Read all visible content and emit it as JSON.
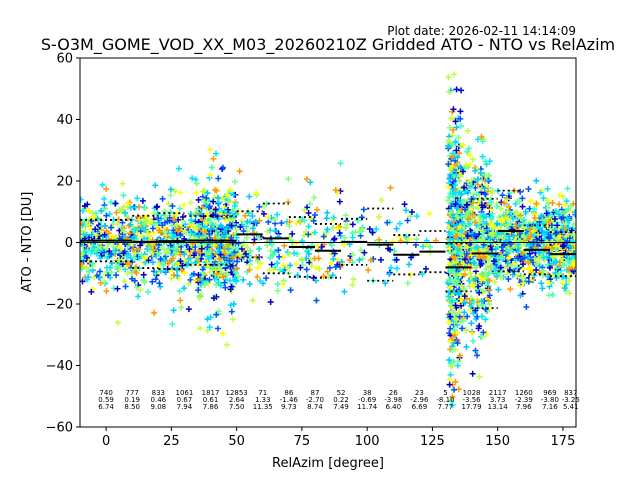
{
  "chart_data": {
    "type": "scatter",
    "title": "S-O3M_GOME_VOD_XX_M03_20260210Z Gridded ATO - NTO vs RelAzim",
    "plot_date": "Plot date: 2026-02-11 14:14:09",
    "xlabel": "RelAzim [degree]",
    "ylabel": "ATO - NTO [DU]",
    "xlim": [
      -10,
      180
    ],
    "ylim": [
      -60,
      60
    ],
    "xticks": [
      0,
      25,
      50,
      75,
      100,
      125,
      150,
      175
    ],
    "yticks": [
      -60,
      -40,
      -20,
      0,
      20,
      40,
      60
    ],
    "xtick_labels": [
      "0",
      "25",
      "50",
      "75",
      "100",
      "125",
      "150",
      "175"
    ],
    "ytick_labels": [
      "−60",
      "−40",
      "−20",
      "0",
      "20",
      "40",
      "60"
    ],
    "marker": "+",
    "grid": false,
    "zero_line": true,
    "point_colors": [
      "#00e5ff",
      "#00c8ff",
      "#40ffb8",
      "#80ff80",
      "#c0ff40",
      "#ffff00",
      "#ff9900",
      "#0050ff",
      "#0000cd"
    ],
    "bins": [
      {
        "x": 0,
        "count": "740",
        "mean": "0.59",
        "std": "6.74",
        "mean_val": 0.59,
        "std_val": 6.74,
        "lo": -10,
        "hi": 10
      },
      {
        "x": 10,
        "count": "777",
        "mean": "0.19",
        "std": "8.50",
        "mean_val": 0.19,
        "std_val": 8.5,
        "lo": 10,
        "hi": 20
      },
      {
        "x": 20,
        "count": "833",
        "mean": "0.46",
        "std": "9.08",
        "mean_val": 0.46,
        "std_val": 9.08,
        "lo": 20,
        "hi": 30
      },
      {
        "x": 30,
        "count": "1061",
        "mean": "0.67",
        "std": "7.94",
        "mean_val": 0.67,
        "std_val": 7.94,
        "lo": 30,
        "hi": 40
      },
      {
        "x": 40,
        "count": "1817",
        "mean": "0.61",
        "std": "7.86",
        "mean_val": 0.61,
        "std_val": 7.86,
        "lo": 40,
        "hi": 50
      },
      {
        "x": 50,
        "count": "12853",
        "mean": "2.64",
        "std": "7.50",
        "mean_val": 2.64,
        "std_val": 7.5,
        "lo": 50,
        "hi": 60
      },
      {
        "x": 60,
        "count": "71",
        "mean": "1.33",
        "std": "11.35",
        "mean_val": 1.33,
        "std_val": 11.35,
        "lo": 60,
        "hi": 70
      },
      {
        "x": 70,
        "count": "86",
        "mean": "-1.46",
        "std": "9.73",
        "mean_val": -1.46,
        "std_val": 9.73,
        "lo": 70,
        "hi": 80
      },
      {
        "x": 80,
        "count": "87",
        "mean": "-2.70",
        "std": "8.74",
        "mean_val": -2.7,
        "std_val": 8.74,
        "lo": 80,
        "hi": 90
      },
      {
        "x": 90,
        "count": "52",
        "mean": "0.22",
        "std": "7.49",
        "mean_val": 0.22,
        "std_val": 7.49,
        "lo": 90,
        "hi": 100
      },
      {
        "x": 100,
        "count": "38",
        "mean": "-0.69",
        "std": "11.74",
        "mean_val": -0.69,
        "std_val": 11.74,
        "lo": 100,
        "hi": 110
      },
      {
        "x": 110,
        "count": "26",
        "mean": "-3.98",
        "std": "6.40",
        "mean_val": -3.98,
        "std_val": 6.4,
        "lo": 110,
        "hi": 120
      },
      {
        "x": 120,
        "count": "23",
        "mean": "-2.96",
        "std": "6.69",
        "mean_val": -2.96,
        "std_val": 6.69,
        "lo": 120,
        "hi": 130
      },
      {
        "x": 130,
        "count": "5",
        "mean": "-8.10",
        "std": "7.77",
        "mean_val": -8.1,
        "std_val": 7.77,
        "lo": 130,
        "hi": 140
      },
      {
        "x": 140,
        "count": "1028",
        "mean": "-3.56",
        "std": "17.79",
        "mean_val": -3.56,
        "std_val": 17.79,
        "lo": 140,
        "hi": 150
      },
      {
        "x": 150,
        "count": "2117",
        "mean": "3.73",
        "std": "13.14",
        "mean_val": 3.73,
        "std_val": 13.14,
        "lo": 150,
        "hi": 160
      },
      {
        "x": 160,
        "count": "1260",
        "mean": "-2.39",
        "std": "7.96",
        "mean_val": -2.39,
        "std_val": 7.96,
        "lo": 160,
        "hi": 170
      },
      {
        "x": 170,
        "count": "969",
        "mean": "-3.80",
        "std": "7.16",
        "mean_val": -3.8,
        "std_val": 7.16,
        "lo": 170,
        "hi": 180
      },
      {
        "x": 180,
        "count": "837",
        "mean": "-3.25",
        "std": "5.41",
        "mean_val": -3.25,
        "std_val": 5.41,
        "lo": 180,
        "hi": 190
      }
    ]
  }
}
